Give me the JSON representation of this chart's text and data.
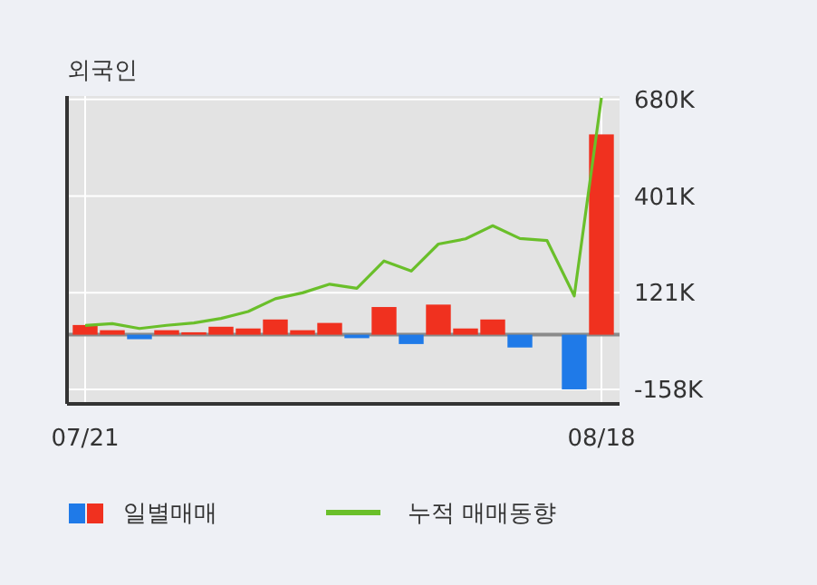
{
  "chart_data": {
    "type": "bar",
    "title": "외국인",
    "categories": [
      "07/21",
      null,
      null,
      null,
      null,
      null,
      null,
      null,
      null,
      null,
      null,
      null,
      null,
      null,
      null,
      null,
      null,
      null,
      null,
      "08/18"
    ],
    "series": [
      {
        "name": "일별매매",
        "colors": [
          "#f0311f",
          "#f0311f",
          "#1f7ae8",
          "#f0311f",
          "#f0311f",
          "#f0311f",
          "#f0311f",
          "#f0311f",
          "#f0311f",
          "#f0311f",
          "#1f7ae8",
          "#f0311f",
          "#1f7ae8",
          "#f0311f",
          "#f0311f",
          "#f0311f",
          "#1f7ae8",
          "#f0311f",
          "#1f7ae8",
          "#f0311f"
        ],
        "values": [
          28,
          13,
          -13,
          13,
          7,
          23,
          18,
          44,
          13,
          34,
          -10,
          80,
          -27,
          87,
          18,
          44,
          -37,
          0,
          -158,
          579
        ]
      },
      {
        "name": "누적 매매동향",
        "type": "line",
        "color": "#6abf2a",
        "values": [
          27,
          32,
          18,
          27,
          34,
          47,
          67,
          104,
          121,
          146,
          134,
          213,
          184,
          262,
          277,
          315,
          278,
          272,
          112,
          685
        ]
      }
    ],
    "ylim": [
      -200,
      690
    ],
    "yticks": [
      {
        "value": 680,
        "label": "680K"
      },
      {
        "value": 401,
        "label": "401K"
      },
      {
        "value": 121,
        "label": "121K"
      },
      {
        "value": -158,
        "label": "-158K"
      }
    ],
    "grid": true,
    "legend": "bottom"
  }
}
